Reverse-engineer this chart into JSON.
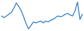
{
  "values": [
    -0.1,
    -0.3,
    -0.1,
    0.1,
    0.3,
    0.8,
    1.4,
    1.0,
    0.5,
    -0.2,
    -1.0,
    -1.6,
    -1.2,
    -0.8,
    -0.9,
    -0.8,
    -0.7,
    -0.9,
    -0.7,
    -0.8,
    -0.6,
    -0.5,
    -0.3,
    -0.1,
    -0.2,
    -0.1,
    0.1,
    0.2,
    0.0,
    -0.1,
    0.5,
    1.5,
    -0.5,
    0.1
  ],
  "line_color": "#2878c8",
  "line_width": 0.9,
  "background_color": "#ffffff"
}
